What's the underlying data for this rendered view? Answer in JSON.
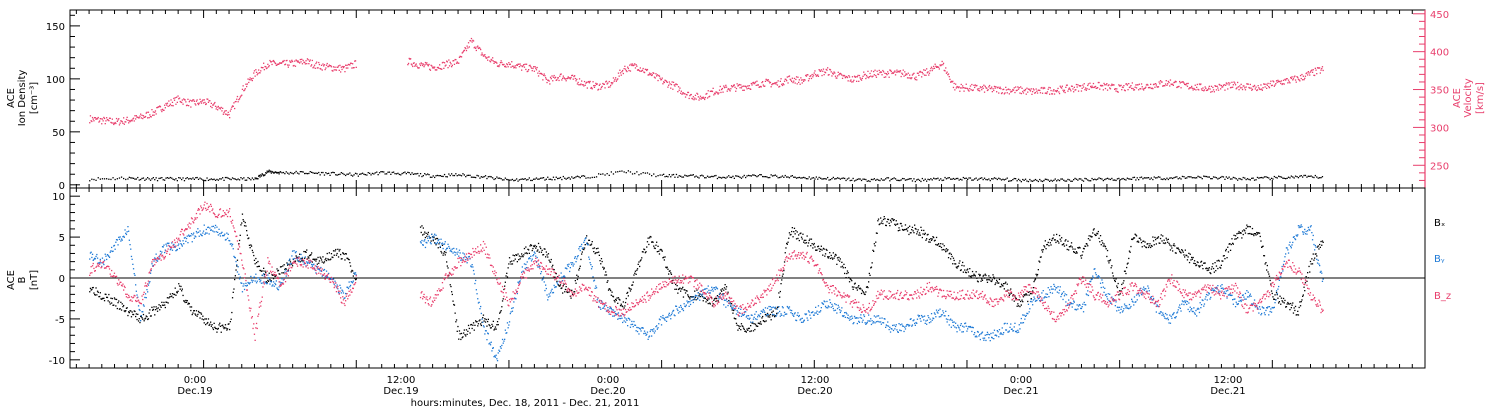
{
  "chart_data": [
    {
      "type": "scatter",
      "panel": "top",
      "ylabel_left": [
        "ACE",
        "Ion Density",
        "[cm⁻³]"
      ],
      "ylabel_right": [
        "ACE",
        "Velocity",
        "[km/s]"
      ],
      "ylim_left": [
        -3,
        165
      ],
      "ylim_right": [
        220,
        455
      ],
      "yticks_left": [
        0,
        50,
        100,
        150
      ],
      "yticks_right": [
        250,
        300,
        350,
        400,
        450
      ],
      "colors": {
        "density": "#000000",
        "velocity": "#e83e6c"
      },
      "series": [
        {
          "key": "density",
          "axis": "left",
          "x": [
            -9,
            -6,
            -4,
            -2,
            0,
            2,
            4,
            5,
            6,
            8,
            10,
            12,
            14,
            16,
            18,
            20,
            22,
            24,
            26,
            28,
            30,
            33,
            36,
            38,
            40,
            42,
            44,
            46,
            48,
            50,
            52,
            54,
            56,
            58,
            60,
            62,
            64,
            66,
            68,
            70,
            72,
            74,
            76,
            78,
            80,
            82,
            84,
            86,
            88
          ],
          "values": [
            6,
            7,
            6,
            6,
            6,
            6,
            6,
            13,
            12,
            12,
            11,
            10,
            12,
            11,
            9,
            10,
            8,
            5,
            6,
            7,
            8,
            13,
            9,
            9,
            8,
            8,
            9,
            8,
            7,
            6,
            5,
            6,
            5,
            6,
            6,
            6,
            5,
            5,
            5,
            6,
            6,
            7,
            7,
            8,
            7,
            6,
            7,
            8,
            8
          ]
        },
        {
          "key": "velocity",
          "axis": "right",
          "x": [
            -9,
            -8,
            -7,
            -6,
            -5,
            -4,
            -3,
            -2,
            -1,
            0,
            1,
            2,
            3,
            4,
            5,
            6,
            7,
            8,
            9,
            10,
            11,
            12,
            13,
            14,
            15,
            16,
            17,
            18,
            19,
            20,
            21,
            22,
            23,
            24,
            25,
            26,
            27,
            28,
            29,
            30,
            31,
            32,
            33,
            34,
            35,
            36,
            37,
            38,
            39,
            40,
            41,
            42,
            43,
            44,
            45,
            46,
            47,
            48,
            49,
            50,
            51,
            52,
            53,
            54,
            55,
            56,
            57,
            58,
            59,
            60,
            61,
            62,
            63,
            64,
            65,
            66,
            67,
            68,
            69,
            70,
            71,
            72,
            73,
            74,
            75,
            76,
            77,
            78,
            79,
            80,
            81,
            82,
            83,
            84,
            85,
            86,
            87,
            88
          ],
          "values": [
            312,
            310,
            308,
            310,
            314,
            320,
            330,
            338,
            332,
            335,
            328,
            318,
            350,
            372,
            385,
            384,
            385,
            388,
            382,
            380,
            378,
            385,
            null,
            null,
            null,
            388,
            383,
            380,
            384,
            388,
            415,
            395,
            385,
            385,
            380,
            378,
            362,
            368,
            365,
            358,
            355,
            358,
            378,
            382,
            372,
            362,
            355,
            344,
            340,
            348,
            352,
            354,
            356,
            360,
            358,
            365,
            362,
            372,
            375,
            368,
            364,
            370,
            372,
            372,
            372,
            368,
            375,
            385,
            354,
            353,
            352,
            351,
            350,
            350,
            348,
            349,
            350,
            352,
            354,
            356,
            354,
            352,
            355,
            355,
            358,
            360,
            356,
            354,
            352,
            354,
            356,
            355,
            352,
            358,
            362,
            365,
            372,
            378
          ]
        }
      ]
    },
    {
      "type": "scatter",
      "panel": "bottom",
      "ylabel": [
        "ACE",
        "B",
        "[nT]"
      ],
      "ylim": [
        -11,
        11
      ],
      "yticks": [
        -10,
        -5,
        0,
        5,
        10
      ],
      "legend": [
        {
          "label": "Bₓ",
          "color": "#000000"
        },
        {
          "label": "Bᵧ",
          "color": "#1f7ad6"
        },
        {
          "label": "B_z",
          "color": "#e83e6c"
        }
      ],
      "series": [
        {
          "key": "Bx",
          "color": "#000000",
          "x": [
            -9,
            -8,
            -7,
            -6,
            -5,
            -4,
            -3,
            -2,
            -1,
            0,
            1,
            2,
            3,
            4,
            5,
            6,
            7,
            8,
            9,
            10,
            11,
            12,
            13,
            14,
            15,
            16,
            17,
            18,
            19,
            20,
            21,
            22,
            23,
            24,
            25,
            26,
            27,
            28,
            29,
            30,
            31,
            32,
            33,
            34,
            35,
            36,
            37,
            38,
            39,
            40,
            41,
            42,
            43,
            44,
            45,
            46,
            47,
            48,
            49,
            50,
            51,
            52,
            53,
            54,
            55,
            56,
            57,
            58,
            59,
            60,
            61,
            62,
            63,
            64,
            65,
            66,
            67,
            68,
            69,
            70,
            71,
            72,
            73,
            74,
            75,
            76,
            77,
            78,
            79,
            80,
            81,
            82,
            83,
            84,
            85,
            86,
            87,
            88
          ],
          "values": [
            -1,
            -2,
            -3,
            -4,
            -5,
            -4,
            -3,
            -1,
            -4,
            -5,
            -6,
            -6,
            8,
            2,
            0,
            1,
            2,
            3,
            2,
            3,
            3,
            0,
            null,
            6,
            null,
            null,
            6,
            5,
            3,
            -7,
            -6,
            -5,
            -6,
            2,
            3,
            4,
            3,
            -1,
            -2,
            5,
            3,
            -2,
            -3,
            1,
            5,
            3,
            -1,
            -2,
            -2,
            -3,
            -1,
            -6,
            -6,
            -5,
            -4,
            6,
            5,
            4,
            3,
            2,
            -1,
            -2,
            7,
            7,
            6,
            6,
            5,
            4,
            2,
            1,
            0,
            0,
            -1,
            -3,
            -2,
            4,
            5,
            4,
            3,
            6,
            3,
            -2,
            5,
            4,
            5,
            4,
            3,
            2,
            1,
            2,
            5,
            6,
            5,
            -2,
            -3,
            -4,
            2,
            5
          ]
        },
        {
          "key": "By",
          "color": "#1f7ad6",
          "x": [
            -9,
            -8,
            -7,
            -6,
            -5,
            -4,
            -3,
            -2,
            -1,
            0,
            1,
            2,
            3,
            4,
            5,
            6,
            7,
            8,
            9,
            10,
            11,
            12,
            13,
            14,
            15,
            16,
            17,
            18,
            19,
            20,
            21,
            22,
            23,
            24,
            25,
            26,
            27,
            28,
            29,
            30,
            31,
            32,
            33,
            34,
            35,
            36,
            37,
            38,
            39,
            40,
            41,
            42,
            43,
            44,
            45,
            46,
            47,
            48,
            49,
            50,
            51,
            52,
            53,
            54,
            55,
            56,
            57,
            58,
            59,
            60,
            61,
            62,
            63,
            64,
            65,
            66,
            67,
            68,
            69,
            70,
            71,
            72,
            73,
            74,
            75,
            76,
            77,
            78,
            79,
            80,
            81,
            82,
            83,
            84,
            85,
            86,
            87,
            88
          ],
          "values": [
            3,
            2,
            4,
            6,
            -5,
            2,
            4,
            4,
            5,
            6,
            6,
            5,
            -1,
            0,
            0,
            -1,
            3,
            2,
            1,
            0,
            -2,
            1,
            null,
            5,
            null,
            null,
            4,
            5,
            4,
            3,
            2,
            -6,
            -10,
            -5,
            1,
            3,
            -2,
            0,
            2,
            5,
            -3,
            -4,
            -5,
            -6,
            -7,
            -5,
            -4,
            -3,
            -2,
            -1,
            -3,
            -4,
            -5,
            -4,
            -4,
            -4,
            -5,
            -4,
            -3,
            -4,
            -5,
            -5,
            -5,
            -6,
            -6,
            -5,
            -5,
            -4,
            -6,
            -6,
            -7,
            -7,
            -6,
            -6,
            -3,
            -2,
            -1,
            -3,
            -4,
            1,
            -2,
            -4,
            -3,
            -1,
            -4,
            -5,
            -3,
            -4,
            -2,
            -1,
            -3,
            -2,
            -4,
            -4,
            3,
            6,
            6,
            -1
          ]
        },
        {
          "key": "Bz",
          "color": "#e83e6c",
          "x": [
            -9,
            -8,
            -7,
            -6,
            -5,
            -4,
            -3,
            -2,
            -1,
            0,
            1,
            2,
            3,
            4,
            5,
            6,
            7,
            8,
            9,
            10,
            11,
            12,
            13,
            14,
            15,
            16,
            17,
            18,
            19,
            20,
            21,
            22,
            23,
            24,
            25,
            26,
            27,
            28,
            29,
            30,
            31,
            32,
            33,
            34,
            35,
            36,
            37,
            38,
            39,
            40,
            41,
            42,
            43,
            44,
            45,
            46,
            47,
            48,
            49,
            50,
            51,
            52,
            53,
            54,
            55,
            56,
            57,
            58,
            59,
            60,
            61,
            62,
            63,
            64,
            65,
            66,
            67,
            68,
            69,
            70,
            71,
            72,
            73,
            74,
            75,
            76,
            77,
            78,
            79,
            80,
            81,
            82,
            83,
            84,
            85,
            86,
            87,
            88
          ],
          "values": [
            1,
            2,
            0,
            -2,
            -3,
            2,
            3,
            5,
            7,
            9,
            8,
            8,
            2,
            -7,
            2,
            -1,
            2,
            2,
            1,
            0,
            -3,
            0,
            null,
            -1,
            null,
            null,
            -2,
            -3,
            0,
            2,
            3,
            4,
            0,
            -3,
            0,
            2,
            1,
            0,
            -2,
            -1,
            -3,
            -4,
            -4,
            -3,
            -2,
            -1,
            0,
            0,
            -1,
            -3,
            -2,
            -4,
            -3,
            -2,
            0,
            3,
            3,
            2,
            -1,
            -2,
            -3,
            -4,
            -2,
            -2,
            -2,
            -2,
            -1,
            -2,
            -2,
            -2,
            -2,
            -3,
            -2,
            -2,
            -1,
            -3,
            -5,
            -3,
            0,
            -2,
            -3,
            -2,
            -1,
            -2,
            -3,
            0,
            -2,
            -2,
            -1,
            -2,
            -1,
            -4,
            -3,
            -1,
            2,
            1,
            -2,
            -4
          ]
        }
      ]
    }
  ],
  "x_axis": {
    "tick_labels": [
      {
        "time": "0:00",
        "date": "Dec.19"
      },
      {
        "time": "12:00",
        "date": "Dec.19"
      },
      {
        "time": "0:00",
        "date": "Dec.20"
      },
      {
        "time": "12:00",
        "date": "Dec.20"
      },
      {
        "time": "0:00",
        "date": "Dec.21"
      },
      {
        "time": "12:00",
        "date": "Dec.21"
      }
    ],
    "title": "hours:minutes, Dec. 18, 2011 - Dec. 21, 2011",
    "xlim_hours": [
      -10.5,
      96
    ]
  }
}
